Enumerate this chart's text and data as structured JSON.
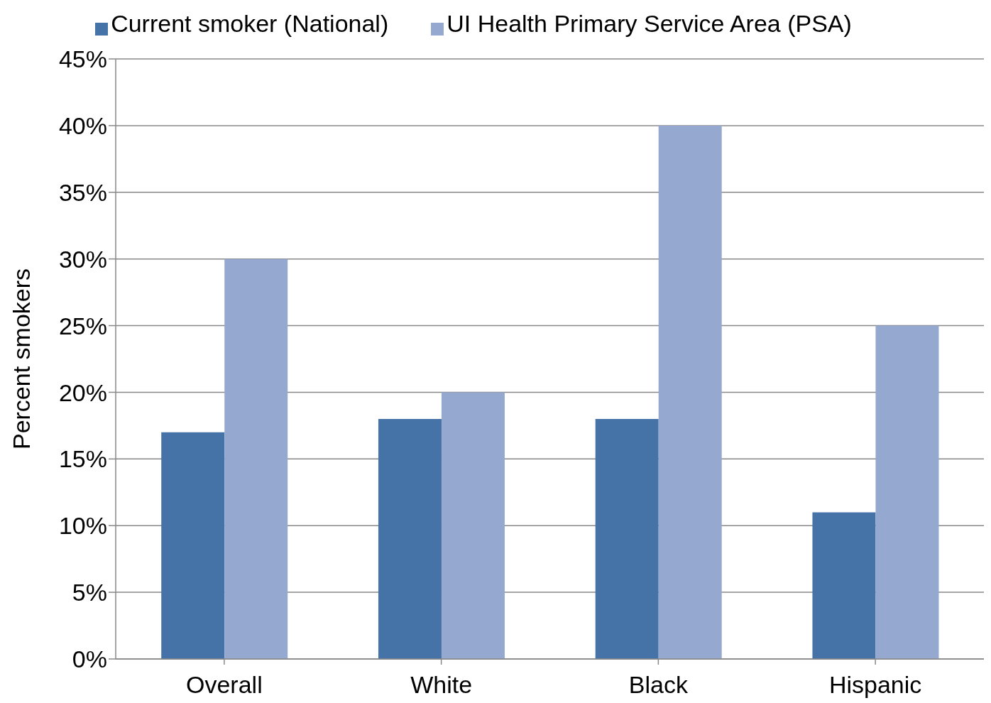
{
  "chart_data": {
    "type": "bar",
    "ylabel": "Percent smokers",
    "categories": [
      "Overall",
      "White",
      "Black",
      "Hispanic"
    ],
    "series": [
      {
        "name": "Current smoker (National)",
        "color": "#4572a7",
        "values": [
          17,
          18,
          18,
          11
        ]
      },
      {
        "name": "UI Health Primary Service Area (PSA)",
        "color": "#95a9d0",
        "values": [
          30,
          20,
          40,
          25
        ]
      }
    ],
    "ylim": [
      0,
      45
    ],
    "yticks": [
      {
        "value": 0,
        "label": "0%"
      },
      {
        "value": 5,
        "label": "5%"
      },
      {
        "value": 10,
        "label": "10%"
      },
      {
        "value": 15,
        "label": "15%"
      },
      {
        "value": 20,
        "label": "20%"
      },
      {
        "value": 25,
        "label": "25%"
      },
      {
        "value": 30,
        "label": "30%"
      },
      {
        "value": 35,
        "label": "35%"
      },
      {
        "value": 40,
        "label": "40%"
      },
      {
        "value": 45,
        "label": "45%"
      }
    ],
    "grid": "y",
    "legend": "top"
  }
}
